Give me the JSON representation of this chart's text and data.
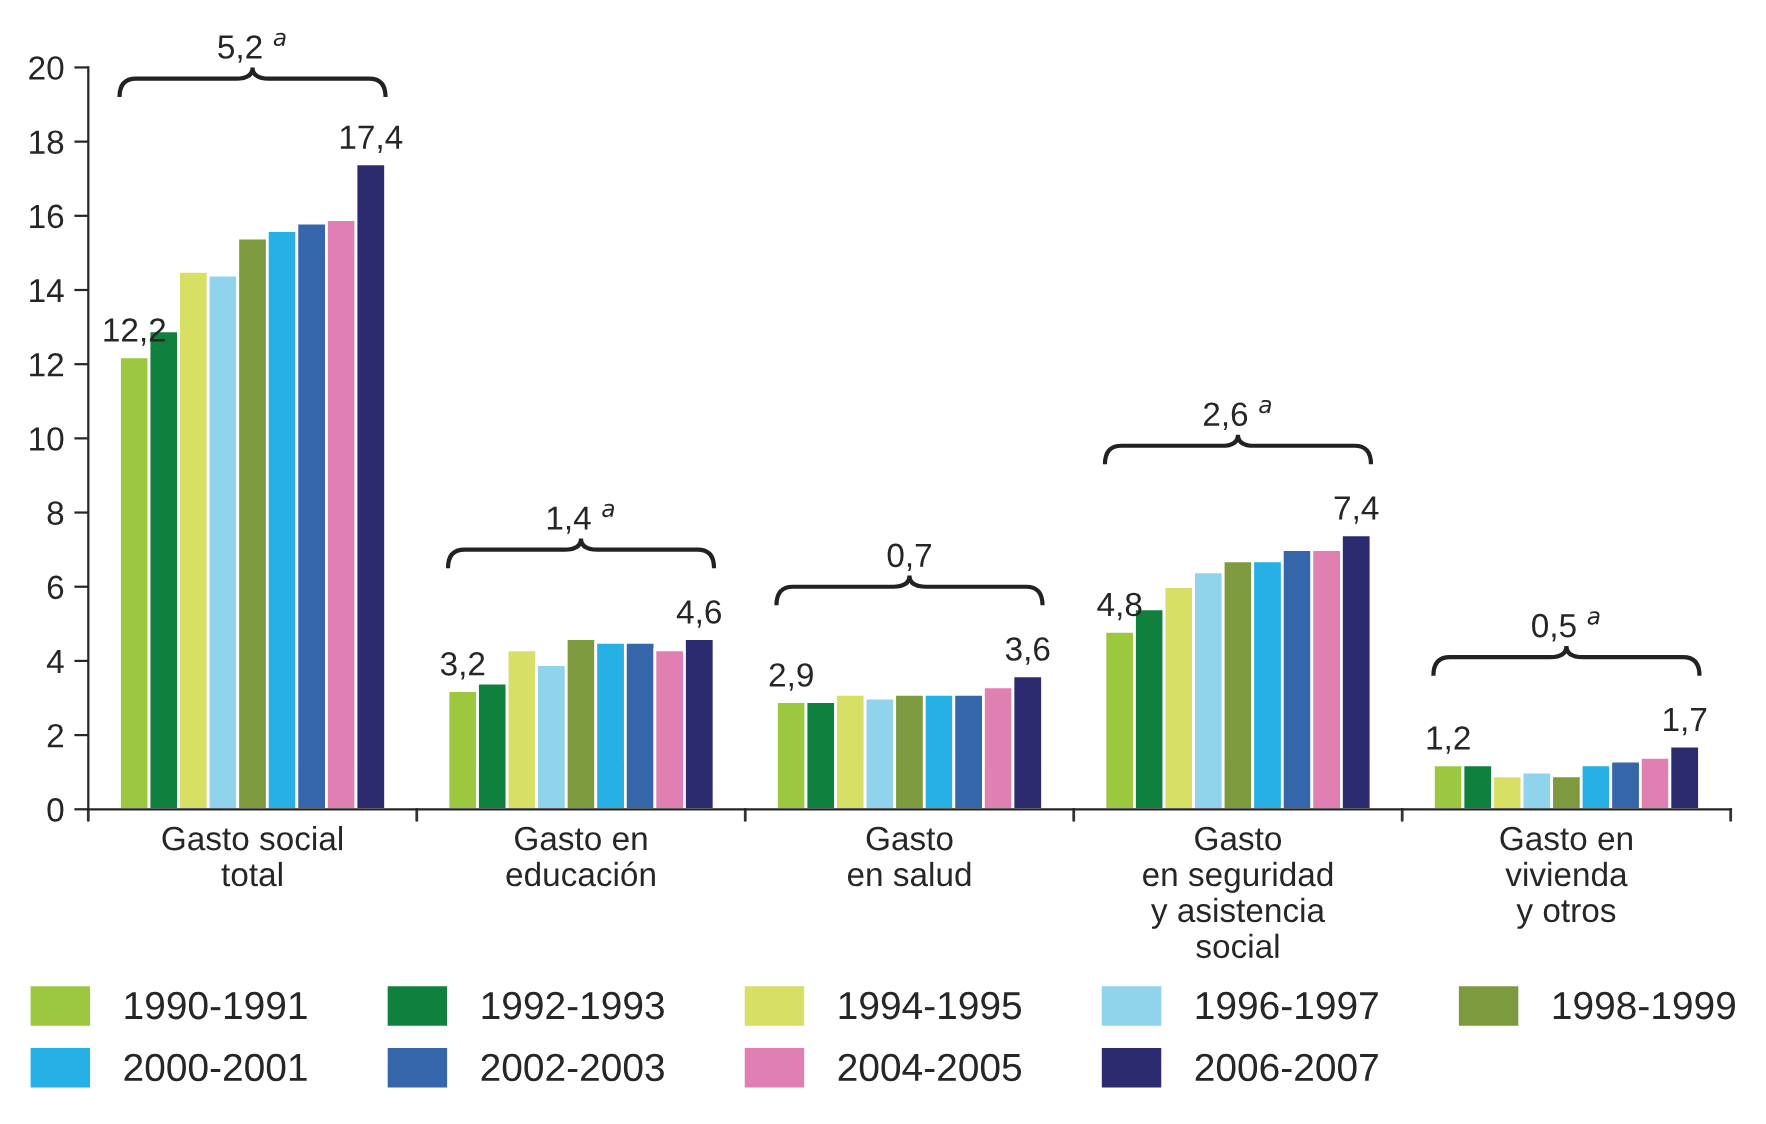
{
  "chart_data": {
    "type": "bar",
    "categories": [
      "Gasto social\ntotal",
      "Gasto en\neducación",
      "Gasto\nen salud",
      "Gasto\nen seguridad\ny asistencia\nsocial",
      "Gasto en\nvivienda\ny otros"
    ],
    "series": [
      {
        "name": "1990-1991",
        "color": "#9bc83f",
        "values": [
          12.2,
          3.2,
          2.9,
          4.8,
          1.2
        ],
        "value_labels": [
          "12,2",
          "3,2",
          "2,9",
          "4,8",
          "1,2"
        ]
      },
      {
        "name": "1992-1993",
        "color": "#0f803e",
        "values": [
          12.9,
          3.4,
          2.9,
          5.4,
          1.2
        ]
      },
      {
        "name": "1994-1995",
        "color": "#d7df64",
        "values": [
          14.5,
          4.3,
          3.1,
          6.0,
          0.9
        ]
      },
      {
        "name": "1996-1997",
        "color": "#90d3ed",
        "values": [
          14.4,
          3.9,
          3.0,
          6.4,
          1.0
        ]
      },
      {
        "name": "1998-1999",
        "color": "#7e9a3e",
        "values": [
          15.4,
          4.6,
          3.1,
          6.7,
          0.9
        ]
      },
      {
        "name": "2000-2001",
        "color": "#26b0e6",
        "values": [
          15.6,
          4.5,
          3.1,
          6.7,
          1.2
        ]
      },
      {
        "name": "2002-2003",
        "color": "#3566aa",
        "values": [
          15.8,
          4.5,
          3.1,
          7.0,
          1.3
        ]
      },
      {
        "name": "2004-2005",
        "color": "#e07fb2",
        "values": [
          15.9,
          4.3,
          3.3,
          7.0,
          1.4
        ]
      },
      {
        "name": "2006-2007",
        "color": "#2d2b70",
        "values": [
          17.4,
          4.6,
          3.6,
          7.4,
          1.7
        ],
        "value_labels": [
          "17,4",
          "4,6",
          "3,6",
          "7,4",
          "1,7"
        ]
      }
    ],
    "annotations": [
      "5,2 $^{a}$",
      "1,4 $^{a}$",
      "0,7",
      "2,6 $^{a}$",
      "0,5 $^{a}$"
    ],
    "ylim": [
      0,
      20
    ],
    "yticks": [
      0,
      2,
      4,
      6,
      8,
      10,
      12,
      14,
      16,
      18,
      20
    ],
    "grid": false,
    "legend": "bottom"
  }
}
